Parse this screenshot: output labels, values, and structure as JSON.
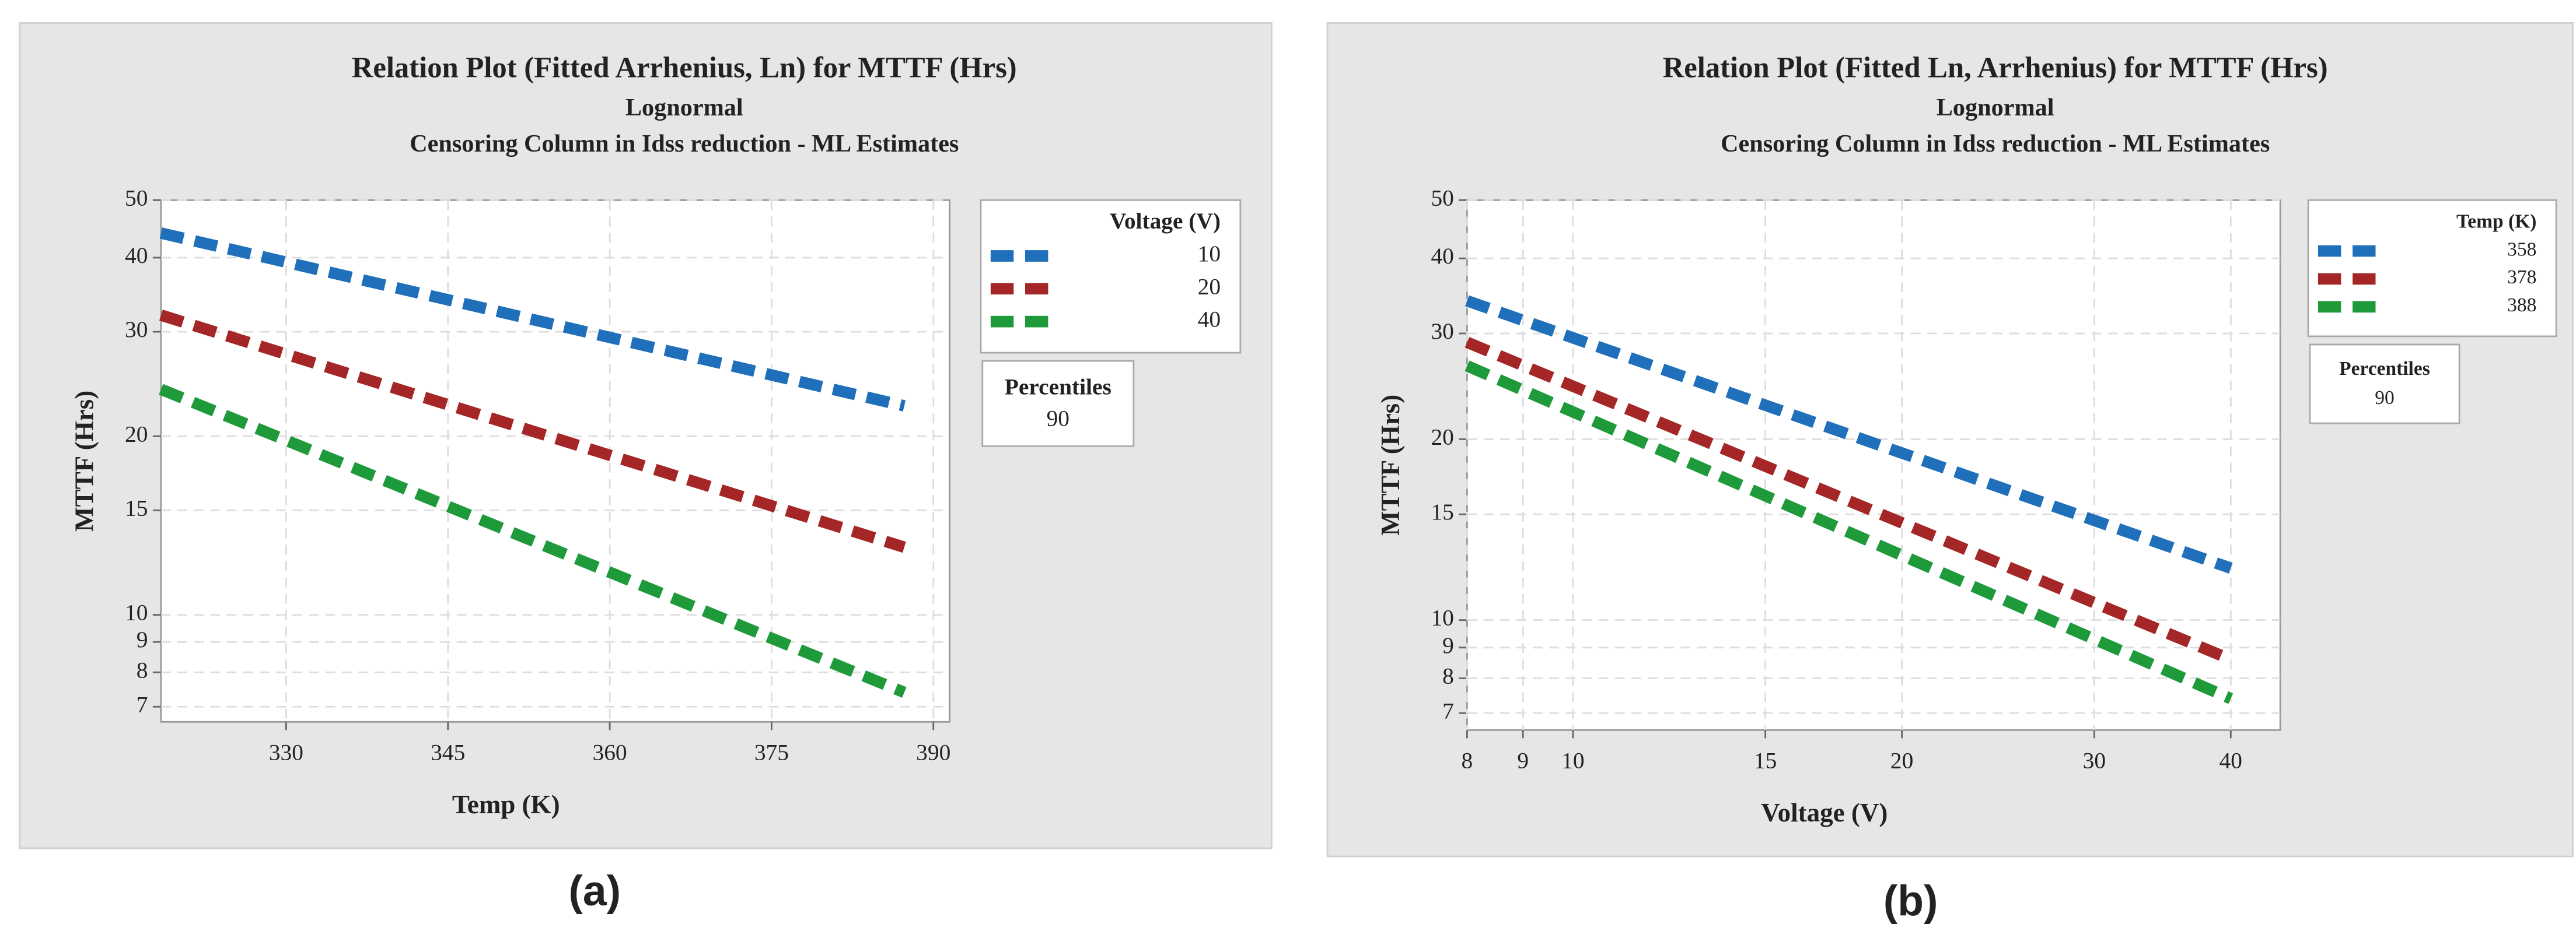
{
  "chart_data": [
    {
      "type": "line",
      "title": "Relation Plot (Fitted Arrhenius, Ln) for MTTF (Hrs)",
      "subtitle": [
        "Lognormal",
        "Censoring Column in Idss reduction - ML Estimates"
      ],
      "xlabel": "Temp (K)",
      "ylabel": "MTTF (Hrs)",
      "caption": "(a)",
      "x": [
        318.4,
        387.3
      ],
      "series": [
        {
          "name": "10",
          "color": "#1f6fba",
          "values": [
            44,
            22.5
          ]
        },
        {
          "name": "20",
          "color": "#a52626",
          "values": [
            32,
            13
          ]
        },
        {
          "name": "40",
          "color": "#1e9a3a",
          "values": [
            24,
            7.4
          ]
        }
      ],
      "legend_title": "Voltage (V)",
      "percentiles_title": "Percentiles",
      "percentiles_value": "90",
      "xscale": "linear",
      "yscale": "log",
      "grid": true,
      "xlim": [
        318.4,
        391.5
      ],
      "xticks": [
        330,
        345,
        360,
        375,
        390
      ],
      "ylim": [
        6.6,
        50
      ],
      "yticks": [
        7,
        8,
        9,
        10,
        15,
        20,
        30,
        40,
        50
      ]
    },
    {
      "type": "line",
      "title": "Relation Plot (Fitted Ln, Arrhenius) for MTTF (Hrs)",
      "subtitle": [
        "Lognormal",
        "Censoring Column in Idss reduction - ML Estimates"
      ],
      "xlabel": "Voltage (V)",
      "ylabel": "MTTF (Hrs)",
      "caption": "(b)",
      "x": [
        8,
        40
      ],
      "series": [
        {
          "name": "358",
          "color": "#1f6fba",
          "values": [
            34,
            12.2
          ]
        },
        {
          "name": "378",
          "color": "#a52626",
          "values": [
            29,
            8.6
          ]
        },
        {
          "name": "388",
          "color": "#1e9a3a",
          "values": [
            26.5,
            7.4
          ]
        }
      ],
      "legend_title": "Temp (K)",
      "percentiles_title": "Percentiles",
      "percentiles_value": "90",
      "xscale": "log",
      "yscale": "log",
      "grid": true,
      "xlim": [
        8,
        44.4
      ],
      "xticks": [
        8,
        9,
        10,
        15,
        20,
        30,
        40
      ],
      "ylim": [
        6.56,
        50
      ],
      "yticks": [
        7,
        8,
        9,
        10,
        15,
        20,
        30,
        40,
        50
      ]
    }
  ]
}
